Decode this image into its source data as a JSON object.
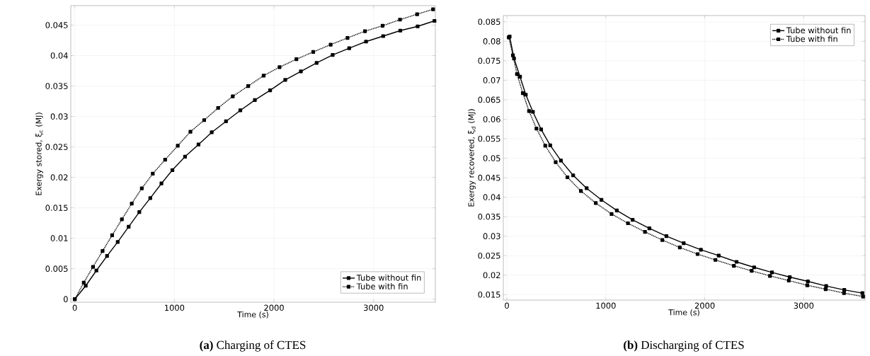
{
  "chart_data": [
    {
      "type": "line",
      "title": "**(a)** Charging of CTES",
      "xlabel": "Time (s)",
      "ylabel": "Exergy stored, ξ$_{c}$ (MJ)",
      "xlim": [
        -40,
        3620
      ],
      "ylim": [
        -0.0005,
        0.0482
      ],
      "xticks": [
        0,
        1000,
        2000,
        3000
      ],
      "yticks": [
        0,
        0.005,
        0.01,
        0.015,
        0.02,
        0.025,
        0.03,
        0.035,
        0.04,
        0.045
      ],
      "grid": true,
      "legend": "bottom right",
      "marker": "square",
      "series": [
        {
          "name": "Tube without fin",
          "color": "#000000",
          "line_style": "solid",
          "x": [
            0,
            110,
            217,
            324,
            431,
            541,
            648,
            758,
            870,
            980,
            1107,
            1242,
            1375,
            1518,
            1662,
            1808,
            1961,
            2113,
            2270,
            2428,
            2589,
            2755,
            2924,
            3096,
            3268,
            3442,
            3611
          ],
          "values": [
            0,
            0.0022,
            0.0047,
            0.0071,
            0.0094,
            0.0119,
            0.0143,
            0.0166,
            0.019,
            0.0212,
            0.0234,
            0.0254,
            0.0274,
            0.0292,
            0.031,
            0.0327,
            0.0343,
            0.036,
            0.0374,
            0.0388,
            0.0401,
            0.0412,
            0.0423,
            0.0432,
            0.0441,
            0.0448,
            0.0457
          ]
        },
        {
          "name": "Tube with fin",
          "color": "#000000",
          "line_style": "dotted",
          "x": [
            0,
            90,
            183,
            279,
            375,
            473,
            572,
            673,
            783,
            907,
            1034,
            1161,
            1299,
            1439,
            1586,
            1741,
            1896,
            2056,
            2225,
            2394,
            2569,
            2738,
            2913,
            3090,
            3265,
            3437,
            3597
          ],
          "values": [
            0,
            0.0027,
            0.0053,
            0.0079,
            0.0105,
            0.0131,
            0.0157,
            0.0182,
            0.0206,
            0.0229,
            0.0252,
            0.0275,
            0.0294,
            0.0314,
            0.0333,
            0.035,
            0.0367,
            0.0381,
            0.0394,
            0.0406,
            0.0418,
            0.0429,
            0.044,
            0.0449,
            0.0459,
            0.0468,
            0.0476
          ]
        }
      ]
    },
    {
      "type": "line",
      "title": "**(b)** Discharging of CTES",
      "xlabel": "Time (s)",
      "ylabel": "Exergy recovered, ξ$_{d}$ (MJ)",
      "xlim": [
        -36,
        3620
      ],
      "ylim": [
        0.0136,
        0.0866
      ],
      "xticks": [
        0,
        1000,
        2000,
        3000
      ],
      "yticks": [
        0.015,
        0.02,
        0.025,
        0.03,
        0.035,
        0.04,
        0.045,
        0.05,
        0.055,
        0.06,
        0.065,
        0.07,
        0.075,
        0.08,
        0.085
      ],
      "grid": true,
      "legend": "top right",
      "marker": "square",
      "series": [
        {
          "name": "Tube without fin",
          "color": "#000000",
          "line_style": "solid",
          "x": [
            28,
            72,
            133,
            191,
            263,
            346,
            438,
            546,
            670,
            806,
            956,
            1111,
            1271,
            1440,
            1612,
            1787,
            1961,
            2141,
            2321,
            2499,
            2679,
            2859,
            3042,
            3227,
            3410,
            3593
          ],
          "values": [
            0.0812,
            0.0756,
            0.0709,
            0.0663,
            0.0619,
            0.0574,
            0.0533,
            0.0494,
            0.0456,
            0.0423,
            0.0393,
            0.0366,
            0.0342,
            0.032,
            0.03,
            0.0282,
            0.0265,
            0.025,
            0.0234,
            0.022,
            0.0207,
            0.0195,
            0.0184,
            0.0172,
            0.0162,
            0.0154
          ]
        },
        {
          "name": "Tube with fin",
          "color": "#000000",
          "line_style": "dotted",
          "x": [
            19,
            61,
            102,
            161,
            224,
            299,
            388,
            493,
            612,
            748,
            898,
            1058,
            1224,
            1396,
            1571,
            1748,
            1928,
            2108,
            2294,
            2474,
            2659,
            2850,
            3036,
            3222,
            3407,
            3600
          ],
          "values": [
            0.081,
            0.0764,
            0.0716,
            0.0667,
            0.0621,
            0.0576,
            0.0532,
            0.049,
            0.0451,
            0.0416,
            0.0385,
            0.0357,
            0.0333,
            0.0311,
            0.029,
            0.0271,
            0.0254,
            0.0239,
            0.0224,
            0.0211,
            0.0198,
            0.0186,
            0.0174,
            0.0164,
            0.0154,
            0.0145
          ]
        }
      ]
    }
  ]
}
